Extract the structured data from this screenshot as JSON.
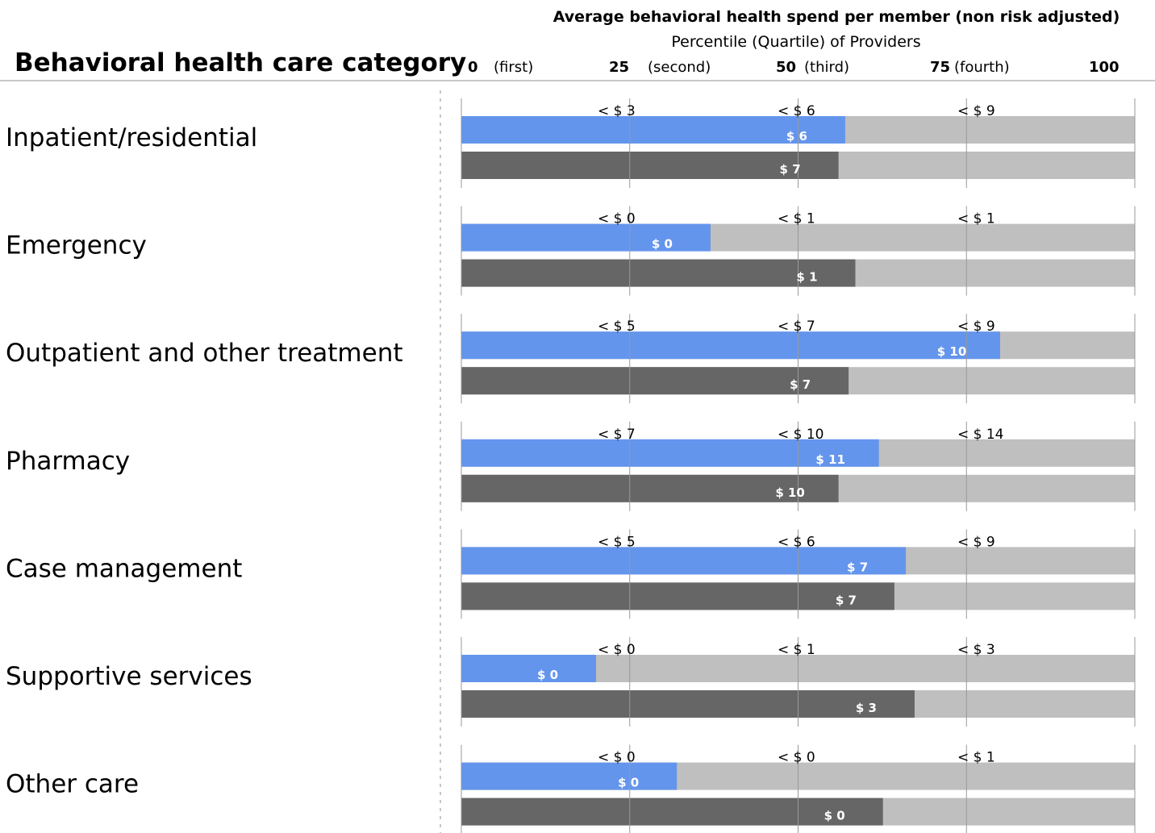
{
  "chart_data": {
    "type": "bar",
    "orientation": "horizontal",
    "title": "Average behavioral health spend per member (non risk adjusted)",
    "subtitle": "Percentile (Quartile) of Providers",
    "category_header": "Behavioral health care category",
    "xlim": [
      0,
      100
    ],
    "grid": true,
    "scale_ticks": [
      {
        "num": "0",
        "qual": "(first)"
      },
      {
        "num": "25",
        "qual": "(second)"
      },
      {
        "num": "50",
        "qual": "(third)"
      },
      {
        "num": "75",
        "qual": "(fourth)"
      },
      {
        "num": "100",
        "qual": ""
      }
    ],
    "rows": [
      {
        "category": "Inpatient/residential",
        "thresholds": [
          "< $ 3",
          "< $ 6",
          "< $ 9"
        ],
        "series_1": {
          "percentile": 57,
          "label": "$ 6"
        },
        "series_2": {
          "percentile": 56,
          "label": "$ 7"
        }
      },
      {
        "category": "Emergency",
        "thresholds": [
          "< $ 0",
          "< $ 1",
          "< $ 1"
        ],
        "series_1": {
          "percentile": 37,
          "label": "$ 0"
        },
        "series_2": {
          "percentile": 58.5,
          "label": "$ 1"
        }
      },
      {
        "category": "Outpatient and other treatment",
        "thresholds": [
          "< $ 5",
          "< $ 7",
          "< $ 9"
        ],
        "series_1": {
          "percentile": 80,
          "label": "$ 10"
        },
        "series_2": {
          "percentile": 57.5,
          "label": "$ 7"
        }
      },
      {
        "category": "Pharmacy",
        "thresholds": [
          "< $ 7",
          "< $ 10",
          "< $ 14"
        ],
        "series_1": {
          "percentile": 62,
          "label": "$ 11"
        },
        "series_2": {
          "percentile": 56,
          "label": "$ 10"
        }
      },
      {
        "category": "Case management",
        "thresholds": [
          "< $ 5",
          "< $ 6",
          "< $ 9"
        ],
        "series_1": {
          "percentile": 66,
          "label": "$ 7"
        },
        "series_2": {
          "percentile": 64.3,
          "label": "$ 7"
        }
      },
      {
        "category": "Supportive services",
        "thresholds": [
          "< $ 0",
          "< $ 1",
          "< $ 3"
        ],
        "series_1": {
          "percentile": 20,
          "label": "$ 0"
        },
        "series_2": {
          "percentile": 67.3,
          "label": "$ 3"
        }
      },
      {
        "category": "Other care",
        "thresholds": [
          "< $ 0",
          "< $ 0",
          "< $ 1"
        ],
        "series_1": {
          "percentile": 32,
          "label": "$ 0"
        },
        "series_2": {
          "percentile": 62.6,
          "label": "$ 0"
        }
      }
    ],
    "colors": {
      "series_1": "#6495ED",
      "series_2": "#666666",
      "track": "#BFBFBF",
      "gridline": "#999999",
      "divider": "#c8c8c8"
    }
  }
}
